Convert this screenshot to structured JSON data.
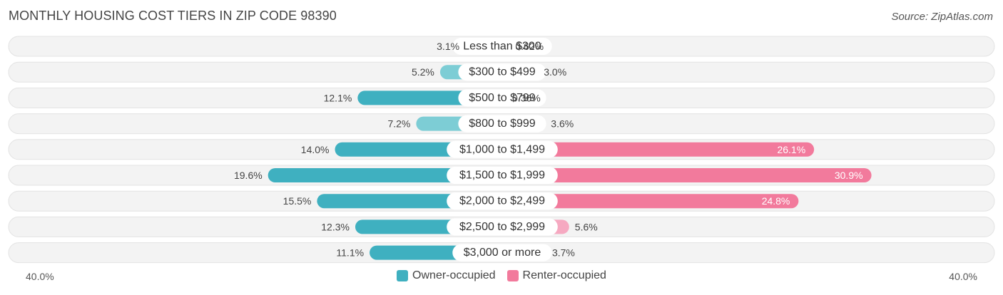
{
  "title": "MONTHLY HOUSING COST TIERS IN ZIP CODE 98390",
  "source": "Source: ZipAtlas.com",
  "colors": {
    "owner": "#3fb0c0",
    "owner_light": "#7dcdd5",
    "renter": "#f27a9c",
    "renter_light": "#f6a9c1",
    "track": "#f2f2f2"
  },
  "chart_data": {
    "type": "bar",
    "orientation": "diverging-horizontal",
    "categories": [
      "Less than $300",
      "$300 to $499",
      "$500 to $799",
      "$800 to $999",
      "$1,000 to $1,499",
      "$1,500 to $1,999",
      "$2,000 to $2,499",
      "$2,500 to $2,999",
      "$3,000 or more"
    ],
    "series": [
      {
        "name": "Owner-occupied",
        "values": [
          3.1,
          5.2,
          12.1,
          7.2,
          14.0,
          19.6,
          15.5,
          12.3,
          11.1
        ],
        "labels": [
          "3.1%",
          "5.2%",
          "12.1%",
          "7.2%",
          "14.0%",
          "19.6%",
          "15.5%",
          "12.3%",
          "11.1%"
        ]
      },
      {
        "name": "Renter-occupied",
        "values": [
          0.62,
          3.0,
          0.36,
          3.6,
          26.1,
          30.9,
          24.8,
          5.6,
          3.7
        ],
        "labels": [
          "0.62%",
          "3.0%",
          "0.36%",
          "3.6%",
          "26.1%",
          "30.9%",
          "24.8%",
          "5.6%",
          "3.7%"
        ]
      }
    ],
    "xlim": [
      -40,
      40
    ],
    "axis_min_label": "40.0%",
    "axis_max_label": "40.0%",
    "legend_position": "bottom-center"
  }
}
